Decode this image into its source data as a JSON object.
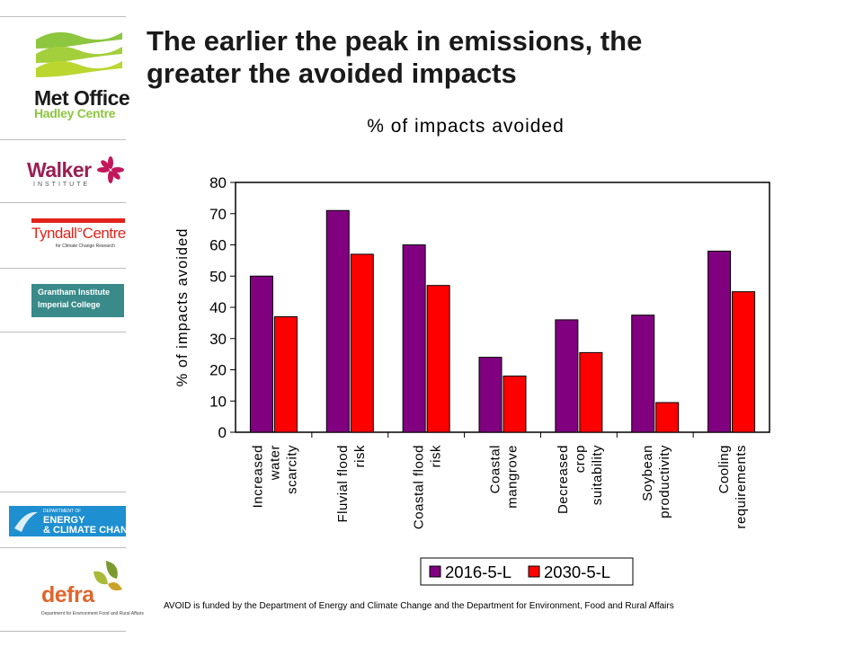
{
  "sidebar": {
    "metoffice": {
      "line1": "Met Office",
      "line2": "Hadley Centre"
    },
    "walker": {
      "name": "Walker",
      "sub": "INSTITUTE"
    },
    "tyndall": {
      "name": "Tyndall°Centre",
      "sub": "for Climate Change Research"
    },
    "grantham": {
      "line1": "Grantham Institute",
      "line2": "Imperial College"
    },
    "decc": {
      "line1": "DEPARTMENT OF",
      "line2": "ENERGY",
      "line3": "& CLIMATE CHANGE"
    },
    "defra": {
      "name": "defra",
      "sub": "Department for Environment Food and Rural Affairs"
    }
  },
  "title": {
    "line1": "The earlier the peak in emissions, the",
    "line2": "greater the avoided impacts"
  },
  "footer": "AVOID is funded by the Department of Energy and Climate Change and the Department for Environment, Food and Rural Affairs",
  "chart_data": {
    "type": "bar",
    "title": "% of impacts avoided",
    "ylabel": "% of impacts avoided",
    "xlabel": "",
    "ylim": [
      0,
      80
    ],
    "yticks": [
      0,
      10,
      20,
      30,
      40,
      50,
      60,
      70,
      80
    ],
    "categories": [
      [
        "Increased",
        "water",
        "scarcity"
      ],
      [
        "Fluvial flood",
        "risk"
      ],
      [
        "Coastal flood",
        "risk"
      ],
      [
        "Coastal",
        "mangrove"
      ],
      [
        "Decreased",
        "crop",
        "suitability"
      ],
      [
        "Soybean",
        "productivity"
      ],
      [
        "Cooling",
        "requirements"
      ]
    ],
    "series": [
      {
        "name": "2016-5-L",
        "color": "#800080",
        "values": [
          50,
          71,
          60,
          24,
          36,
          37.5,
          58
        ]
      },
      {
        "name": "2030-5-L",
        "color": "#ff0000",
        "values": [
          37,
          57,
          47,
          18,
          25.5,
          9.5,
          45
        ]
      }
    ],
    "grid": false,
    "legend_position": "bottom"
  }
}
